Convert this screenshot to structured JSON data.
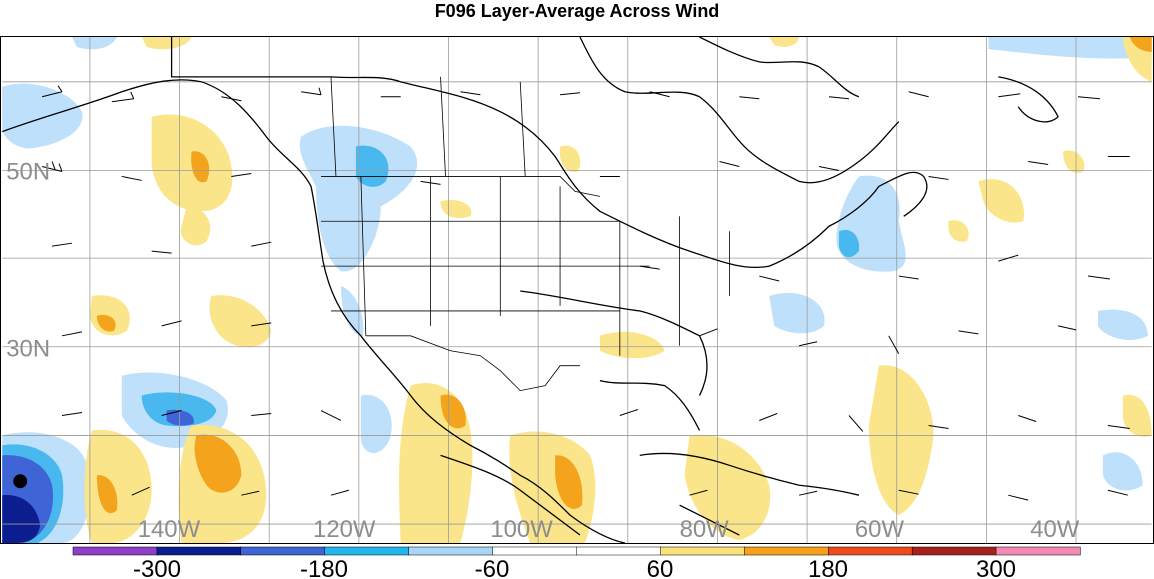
{
  "title": "F096 Layer-Average Across Wind",
  "lat_labels": [
    "50N",
    "30N"
  ],
  "lon_labels": [
    "140W",
    "120W",
    "100W",
    "80W",
    "60W",
    "40W"
  ],
  "colorbar": {
    "colors": [
      "#8e3fc7",
      "#0b1d8f",
      "#3f64d6",
      "#22b6ef",
      "#a9d6f7",
      "#ffffff",
      "#ffffff",
      "#fbe27a",
      "#f7a11a",
      "#ee4a1d",
      "#a8201e",
      "#f28ab4"
    ],
    "tick_labels": [
      "-300",
      "-180",
      "-60",
      "60",
      "180",
      "300"
    ]
  },
  "colors": {
    "light_blue": "#bfe0fb",
    "mid_blue": "#48b8ef",
    "blue": "#3f64d6",
    "dark_blue": "#0b1d8f",
    "light_yellow": "#fbe58a",
    "orange": "#f4a31c",
    "grid": "#9a9a9a",
    "coast": "#000000"
  }
}
